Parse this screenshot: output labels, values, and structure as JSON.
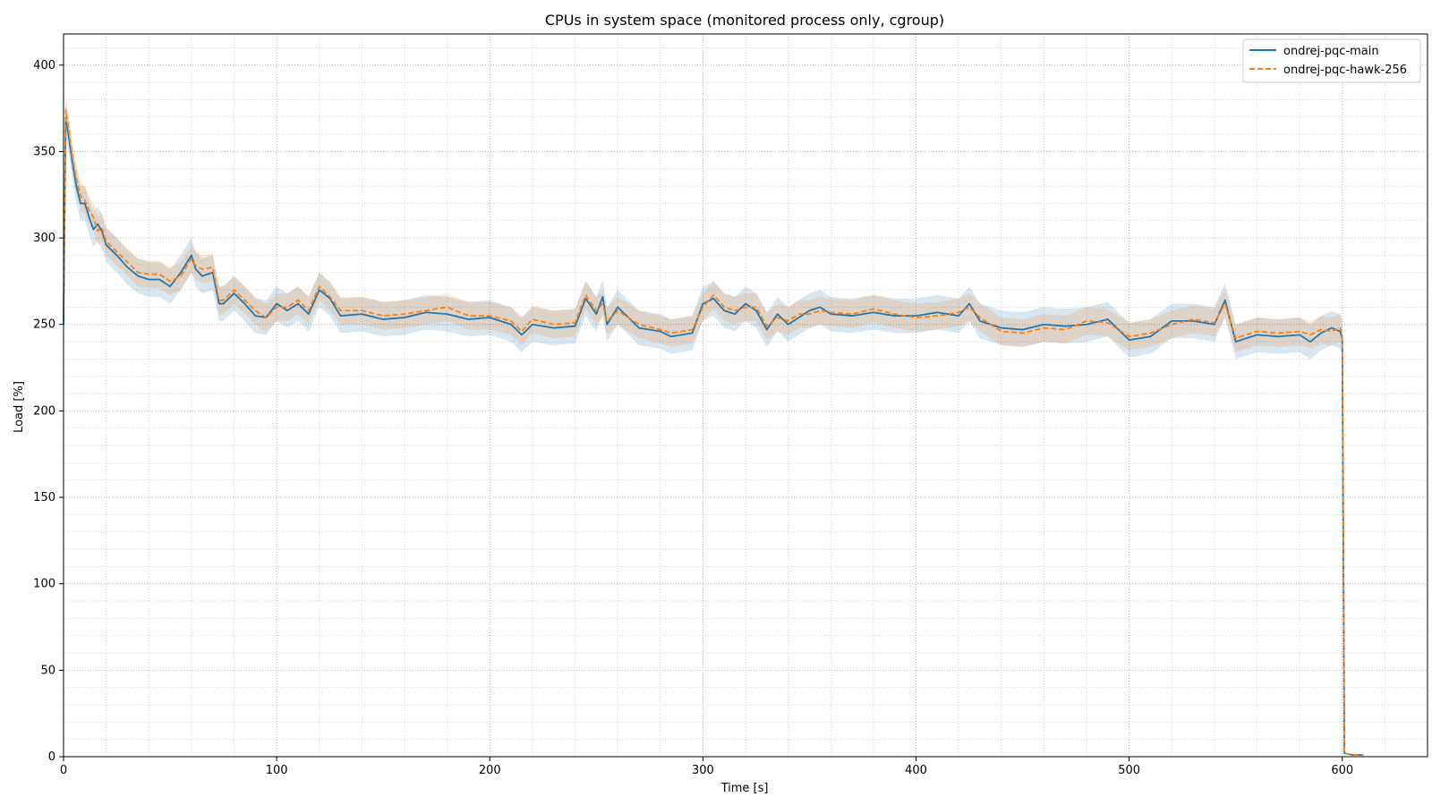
{
  "chart_data": {
    "type": "line",
    "title": "CPUs in system space (monitored process only, cgroup)",
    "xlabel": "Time [s]",
    "ylabel": "Load [%]",
    "xlim": [
      0,
      640
    ],
    "ylim": [
      0,
      418
    ],
    "x_ticks": [
      0,
      100,
      200,
      300,
      400,
      500,
      600
    ],
    "y_ticks": [
      0,
      50,
      100,
      150,
      200,
      250,
      300,
      350,
      400
    ],
    "grid": true,
    "legend_position": "top-right",
    "colors": {
      "series_1": "#1f77b4",
      "series_2": "#ff7f0e"
    },
    "series": [
      {
        "name": "ondrej-pqc-main",
        "style": "solid",
        "x": [
          0,
          1,
          2,
          4,
          6,
          8,
          10,
          12,
          14,
          16,
          18,
          20,
          25,
          30,
          35,
          40,
          45,
          50,
          55,
          60,
          62,
          65,
          70,
          73,
          75,
          80,
          85,
          90,
          95,
          100,
          105,
          110,
          115,
          120,
          125,
          130,
          140,
          150,
          160,
          170,
          180,
          190,
          200,
          210,
          215,
          220,
          230,
          240,
          245,
          250,
          253,
          255,
          260,
          270,
          280,
          285,
          290,
          295,
          300,
          305,
          310,
          315,
          320,
          325,
          330,
          335,
          340,
          345,
          350,
          355,
          360,
          370,
          380,
          390,
          400,
          410,
          420,
          425,
          430,
          440,
          450,
          460,
          470,
          480,
          490,
          500,
          510,
          520,
          530,
          540,
          545,
          550,
          560,
          570,
          580,
          585,
          590,
          595,
          599,
          600,
          601,
          605,
          610
        ],
        "values": [
          250,
          368,
          362,
          345,
          330,
          320,
          320,
          312,
          305,
          308,
          304,
          296,
          290,
          283,
          278,
          276,
          276,
          272,
          280,
          290,
          282,
          278,
          280,
          262,
          262,
          268,
          262,
          255,
          254,
          262,
          258,
          262,
          256,
          270,
          265,
          255,
          256,
          253,
          254,
          257,
          256,
          253,
          254,
          250,
          244,
          250,
          248,
          249,
          265,
          256,
          266,
          250,
          260,
          248,
          246,
          243,
          244,
          245,
          262,
          265,
          258,
          256,
          262,
          258,
          247,
          256,
          250,
          254,
          258,
          260,
          256,
          255,
          257,
          255,
          255,
          257,
          255,
          262,
          252,
          248,
          247,
          250,
          249,
          250,
          253,
          241,
          243,
          252,
          252,
          250,
          264,
          240,
          244,
          243,
          244,
          240,
          245,
          248,
          246,
          242,
          2,
          1,
          1
        ]
      },
      {
        "name": "ondrej-pqc-hawk-256",
        "style": "dashed",
        "x": [
          0,
          1,
          2,
          4,
          6,
          8,
          10,
          12,
          14,
          16,
          18,
          20,
          25,
          30,
          35,
          40,
          45,
          50,
          55,
          60,
          62,
          65,
          70,
          73,
          75,
          80,
          85,
          90,
          95,
          100,
          105,
          110,
          115,
          120,
          125,
          130,
          140,
          150,
          160,
          170,
          180,
          190,
          200,
          210,
          215,
          220,
          230,
          240,
          245,
          250,
          253,
          255,
          260,
          270,
          280,
          285,
          290,
          295,
          300,
          305,
          310,
          315,
          320,
          325,
          330,
          335,
          340,
          345,
          350,
          355,
          360,
          370,
          380,
          390,
          400,
          410,
          420,
          425,
          430,
          440,
          450,
          460,
          470,
          480,
          490,
          500,
          510,
          520,
          530,
          540,
          545,
          550,
          560,
          570,
          580,
          585,
          590,
          595,
          599,
          600,
          601,
          605,
          610
        ],
        "values": [
          260,
          374,
          366,
          348,
          334,
          324,
          322,
          316,
          312,
          304,
          306,
          298,
          292,
          286,
          280,
          279,
          279,
          275,
          278,
          288,
          284,
          282,
          283,
          264,
          264,
          270,
          264,
          258,
          254,
          260,
          260,
          264,
          258,
          272,
          266,
          258,
          258,
          255,
          256,
          258,
          260,
          255,
          255,
          252,
          246,
          253,
          250,
          251,
          267,
          258,
          262,
          252,
          258,
          250,
          247,
          245,
          246,
          247,
          260,
          267,
          260,
          258,
          260,
          260,
          249,
          254,
          252,
          256,
          256,
          258,
          257,
          256,
          259,
          256,
          254,
          255,
          257,
          260,
          254,
          246,
          245,
          248,
          247,
          252,
          251,
          243,
          245,
          250,
          253,
          251,
          262,
          242,
          246,
          245,
          246,
          244,
          247,
          246,
          248,
          244,
          2,
          1,
          1
        ]
      }
    ]
  }
}
